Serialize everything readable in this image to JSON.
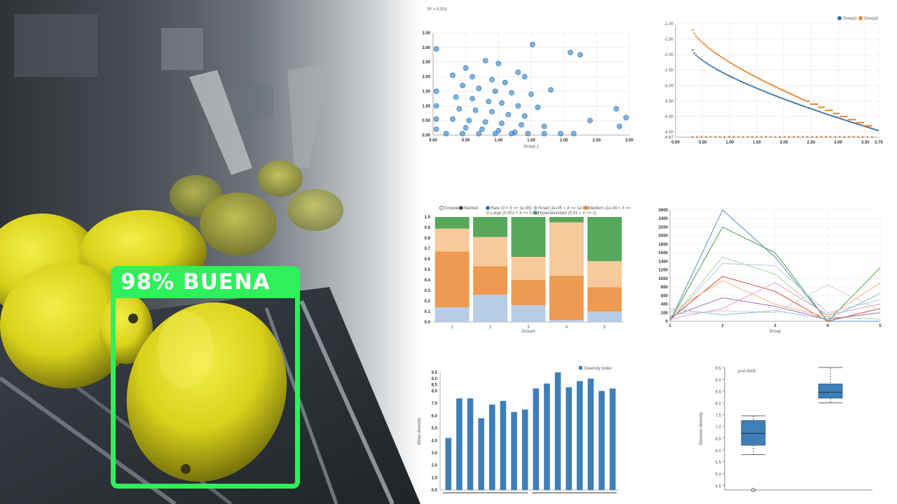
{
  "detection": {
    "label": "98%  BUENA",
    "color": "#2ef05a"
  },
  "panels": {
    "scatter": {
      "chart_data": {
        "type": "scatter",
        "annotation": "R² = 0.001",
        "xlabel": "Group 1",
        "ylabel": "",
        "xlim": [
          0,
          3
        ],
        "ylim": [
          0,
          3.5
        ],
        "x_ticks": [
          "0.00",
          "0.50",
          "1.00",
          "1.50",
          "2.00",
          "2.50",
          "3.00"
        ],
        "y_ticks": [
          "0.00",
          "0.50",
          "1.00",
          "1.50",
          "2.00",
          "2.50",
          "3.00",
          "3.50"
        ],
        "points": [
          [
            0.05,
            2.95
          ],
          [
            1.52,
            3.1
          ],
          [
            2.1,
            2.83
          ],
          [
            2.25,
            2.75
          ],
          [
            0.5,
            2.3
          ],
          [
            0.8,
            2.55
          ],
          [
            1.0,
            2.45
          ],
          [
            1.3,
            2.15
          ],
          [
            0.3,
            2.05
          ],
          [
            0.6,
            2.0
          ],
          [
            0.9,
            1.9
          ],
          [
            1.1,
            1.8
          ],
          [
            1.4,
            2.0
          ],
          [
            0.45,
            1.7
          ],
          [
            0.7,
            1.6
          ],
          [
            0.95,
            1.5
          ],
          [
            1.2,
            1.45
          ],
          [
            1.5,
            1.4
          ],
          [
            0.35,
            1.3
          ],
          [
            0.6,
            1.25
          ],
          [
            0.85,
            1.15
          ],
          [
            1.05,
            1.1
          ],
          [
            1.3,
            1.0
          ],
          [
            1.6,
            0.95
          ],
          [
            0.4,
            0.9
          ],
          [
            0.65,
            0.85
          ],
          [
            0.9,
            0.8
          ],
          [
            1.15,
            0.7
          ],
          [
            1.4,
            0.65
          ],
          [
            0.3,
            0.55
          ],
          [
            0.55,
            0.5
          ],
          [
            0.8,
            0.45
          ],
          [
            1.05,
            0.4
          ],
          [
            1.35,
            0.35
          ],
          [
            1.7,
            0.3
          ],
          [
            0.5,
            0.25
          ],
          [
            0.75,
            0.2
          ],
          [
            1.0,
            0.15
          ],
          [
            1.25,
            0.1
          ],
          [
            0.2,
            0.05
          ],
          [
            0.45,
            0.05
          ],
          [
            0.7,
            0.05
          ],
          [
            0.95,
            0.05
          ],
          [
            1.2,
            0.05
          ],
          [
            1.45,
            0.05
          ],
          [
            1.7,
            0.05
          ],
          [
            1.95,
            0.05
          ],
          [
            2.15,
            0.05
          ],
          [
            2.8,
            0.9
          ],
          [
            2.95,
            0.6
          ],
          [
            2.85,
            0.3
          ],
          [
            1.8,
            1.55
          ],
          [
            2.4,
            0.5
          ],
          [
            0.05,
            1.5
          ],
          [
            0.05,
            1.0
          ],
          [
            0.05,
            0.55
          ],
          [
            0.05,
            0.2
          ]
        ],
        "color": "#2f7bbf"
      }
    },
    "rank": {
      "chart_data": {
        "type": "scatter",
        "xlim": [
          0,
          3.75
        ],
        "ylim": [
          -4.67,
          -1.0
        ],
        "x_ticks": [
          "0.00",
          "0.50",
          "1.00",
          "1.50",
          "2.00",
          "2.50",
          "3.00",
          "3.50",
          "3.75"
        ],
        "y_ticks": [
          "-1.00",
          "-1.50",
          "-2.00",
          "-2.50",
          "-3.00",
          "-3.50",
          "-4.00",
          "-4.50",
          "-4.67"
        ],
        "legend_position": "top-right",
        "series": [
          {
            "name": "Group1",
            "color": "#2f6ea8",
            "start": [
              0.3,
              -1.85
            ],
            "end": [
              3.72,
              -4.45
            ]
          },
          {
            "name": "Group2",
            "color": "#e8822a",
            "start": [
              0.3,
              -1.2
            ],
            "end": [
              3.6,
              -4.35
            ]
          }
        ]
      }
    },
    "stacked": {
      "chart_data": {
        "type": "bar",
        "stacked": true,
        "xlabel": "Groups",
        "categories": [
          "1",
          "2",
          "3",
          "4",
          "5"
        ],
        "y_ticks": [
          "0.0",
          "0.1",
          "0.2",
          "0.3",
          "0.4",
          "0.5",
          "0.6",
          "0.7",
          "0.8",
          "0.9",
          "1.0"
        ],
        "legend": [
          "Grouped",
          "Marked",
          "Rare (0 < X <= 1e-05)",
          "Small (1e-05 < X <= 1e-04)",
          "Medium (1e-04 < X <= 0.001)",
          "Large (0.001 < X <= 0.01)",
          "Hyperabundant (0.01 < X <= 1)"
        ],
        "series": [
          {
            "name": "Small",
            "color": "#b9cce6",
            "values": [
              0.14,
              0.26,
              0.16,
              0.02,
              0.1
            ]
          },
          {
            "name": "Medium",
            "color": "#ee9a50",
            "values": [
              0.53,
              0.27,
              0.24,
              0.42,
              0.23
            ]
          },
          {
            "name": "Large",
            "color": "#f7c99b",
            "values": [
              0.22,
              0.28,
              0.22,
              0.51,
              0.25
            ]
          },
          {
            "name": "Hyperabundant",
            "color": "#56a85a",
            "values": [
              0.11,
              0.19,
              0.38,
              0.05,
              0.42
            ]
          }
        ]
      }
    },
    "lines": {
      "chart_data": {
        "type": "line",
        "xlabel": "Group",
        "categories": [
          "1",
          "2",
          "3",
          "4",
          "5"
        ],
        "y_ticks": [
          "0",
          "200",
          "400",
          "600",
          "800",
          "1000",
          "1200",
          "1400",
          "1600",
          "1800",
          "2000",
          "2200",
          "2400",
          "2600"
        ],
        "ylim": [
          0,
          2600
        ],
        "series": [
          {
            "color": "#5b8fc4",
            "values": [
              0,
              2600,
              1500,
              0,
              0
            ]
          },
          {
            "color": "#4a9e4e",
            "values": [
              0,
              2200,
              1600,
              0,
              1250
            ]
          },
          {
            "color": "#a6d6a0",
            "values": [
              0,
              1500,
              1100,
              100,
              50
            ]
          },
          {
            "color": "#b8c8e6",
            "values": [
              0,
              1350,
              1300,
              200,
              500
            ]
          },
          {
            "color": "#d04a3a",
            "values": [
              50,
              1050,
              700,
              0,
              300
            ]
          },
          {
            "color": "#f4b37a",
            "values": [
              200,
              950,
              400,
              100,
              900
            ]
          },
          {
            "color": "#9b6fb0",
            "values": [
              100,
              550,
              350,
              50,
              200
            ]
          },
          {
            "color": "#e79ac6",
            "values": [
              50,
              300,
              900,
              150,
              400
            ]
          },
          {
            "color": "#cfcfcf",
            "values": [
              150,
              250,
              200,
              850,
              250
            ]
          },
          {
            "color": "#8fbfe0",
            "values": [
              300,
              150,
              250,
              50,
              650
            ]
          }
        ]
      }
    },
    "bars": {
      "chart_data": {
        "type": "bar",
        "legend": [
          "Diversity index"
        ],
        "ylabel": "Mean diversity",
        "y_ticks": [
          "0.0",
          "1.0",
          "2.0",
          "3.0",
          "4.0",
          "5.0",
          "6.0",
          "7.0",
          "8.0",
          "8.5",
          "9.0",
          "9.5"
        ],
        "ylim": [
          0,
          9.5
        ],
        "color": "#3f7fb8",
        "values": [
          4.2,
          7.4,
          7.4,
          5.8,
          6.9,
          7.2,
          6.3,
          6.5,
          8.2,
          8.6,
          9.5,
          8.3,
          8.8,
          9.0,
          8.0,
          8.2
        ]
      }
    },
    "box": {
      "chart_data": {
        "type": "box",
        "annotation": "p=0.0009",
        "ylabel": "Shannon diversity",
        "ylim": [
          4.3,
          9.5
        ],
        "y_ticks": [
          "4.5",
          "5.0",
          "5.5",
          "6.0",
          "6.5",
          "7.0",
          "7.5",
          "8.0",
          "8.5",
          "9.0",
          "9.5"
        ],
        "color": "#3f7fb8",
        "boxes": [
          {
            "min": 5.8,
            "q1": 6.2,
            "median": 6.7,
            "q3": 7.25,
            "max": 7.45,
            "outlier": 4.3
          },
          {
            "min": 8.0,
            "q1": 8.2,
            "median": 8.45,
            "q3": 8.8,
            "max": 9.5
          }
        ]
      }
    }
  }
}
